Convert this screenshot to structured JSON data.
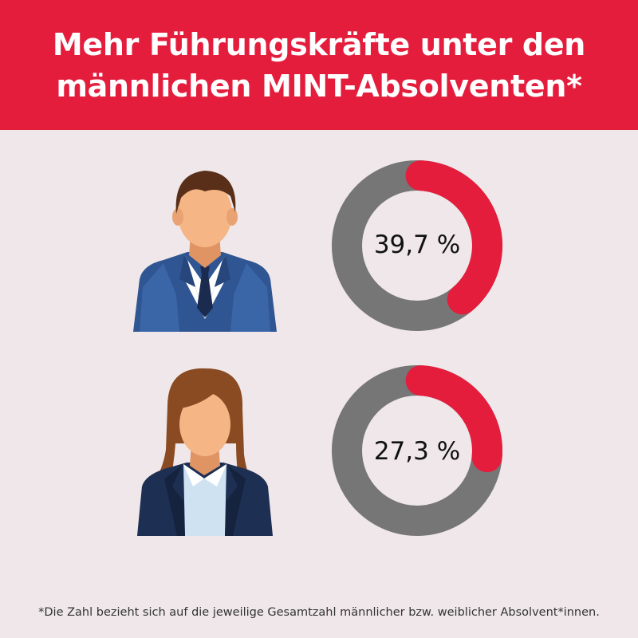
{
  "title": {
    "line1": "Mehr Führungskräfte unter den",
    "line2": "männlichen MINT-Absolventen*"
  },
  "chart_data": {
    "type": "pie",
    "variant": "donut",
    "series": [
      {
        "value": 39.7,
        "label": "39,7 %",
        "icon": "male-graduate-icon"
      },
      {
        "value": 27.3,
        "label": "27,3 %",
        "icon": "female-graduate-icon"
      }
    ],
    "colors": {
      "highlight": "#e41d3d",
      "remainder": "#767676"
    },
    "max": 100
  },
  "footnote": "*Die Zahl bezieht sich auf die jeweilige Gesamtzahl männlicher bzw. weiblicher Absolvent*innen."
}
